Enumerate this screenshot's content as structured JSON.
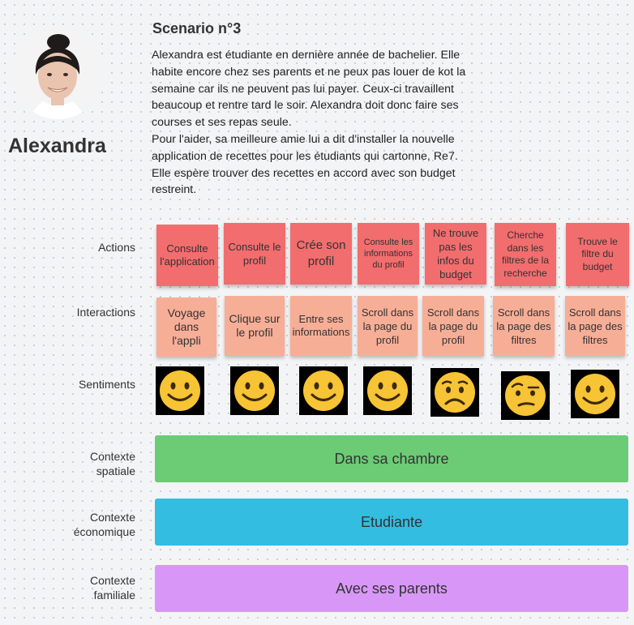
{
  "persona": {
    "name": "Alexandra",
    "photo_icon": "avatar-photo"
  },
  "scenario": {
    "title": "Scenario n°3",
    "paragraph1": "Alexandra est étudiante en dernière année de bachelier. Elle habite encore chez ses parents et ne peux pas louer de kot la semaine car ils ne peuvent pas lui payer. Ceux-ci travaillent beaucoup et rentre tard le soir. Alexandra doit donc faire ses courses et ses repas seule.",
    "paragraph2": "Pour l'aider, sa meilleure amie lui a dit d'installer la nouvelle application de recettes pour les étudiants qui cartonne, Re7. Elle espère trouver des recettes en accord avec son budget restreint."
  },
  "rows": {
    "actions_label": "Actions",
    "interactions_label": "Interactions",
    "sentiments_label": "Sentiments",
    "spatial_label_line1": "Contexte",
    "spatial_label_line2": "spatiale",
    "economic_label_line1": "Contexte",
    "economic_label_line2": "économique",
    "family_label_line1": "Contexte",
    "family_label_line2": "familiale"
  },
  "actions": [
    "Consulte l'application",
    "Consulte le profil",
    "Crée son profil",
    "Consulte les informations du profil",
    "Ne trouve pas les infos du budget",
    "Cherche dans les filtres de la recherche",
    "Trouve le filtre du budget"
  ],
  "interactions": [
    "Voyage dans l'appli",
    "Clique sur le profil",
    "Entre ses informations",
    "Scroll dans la page du profil",
    "Scroll dans la page du profil",
    "Scroll dans la page des filtres",
    "Scroll dans la page des filtres"
  ],
  "sentiments": [
    "smile",
    "smile",
    "smile",
    "smile",
    "worried",
    "raised-eyebrow",
    "smile"
  ],
  "contexts": {
    "spatial": "Dans sa chambre",
    "economic": "Etudiante",
    "family": "Avec ses parents"
  },
  "colors": {
    "action_note": "#f26d6e",
    "interaction_note": "#f7ae97",
    "spatial_band": "#6ccb75",
    "economic_band": "#33bde0",
    "family_band": "#d897f7",
    "emoji_face": "#f7c435"
  }
}
